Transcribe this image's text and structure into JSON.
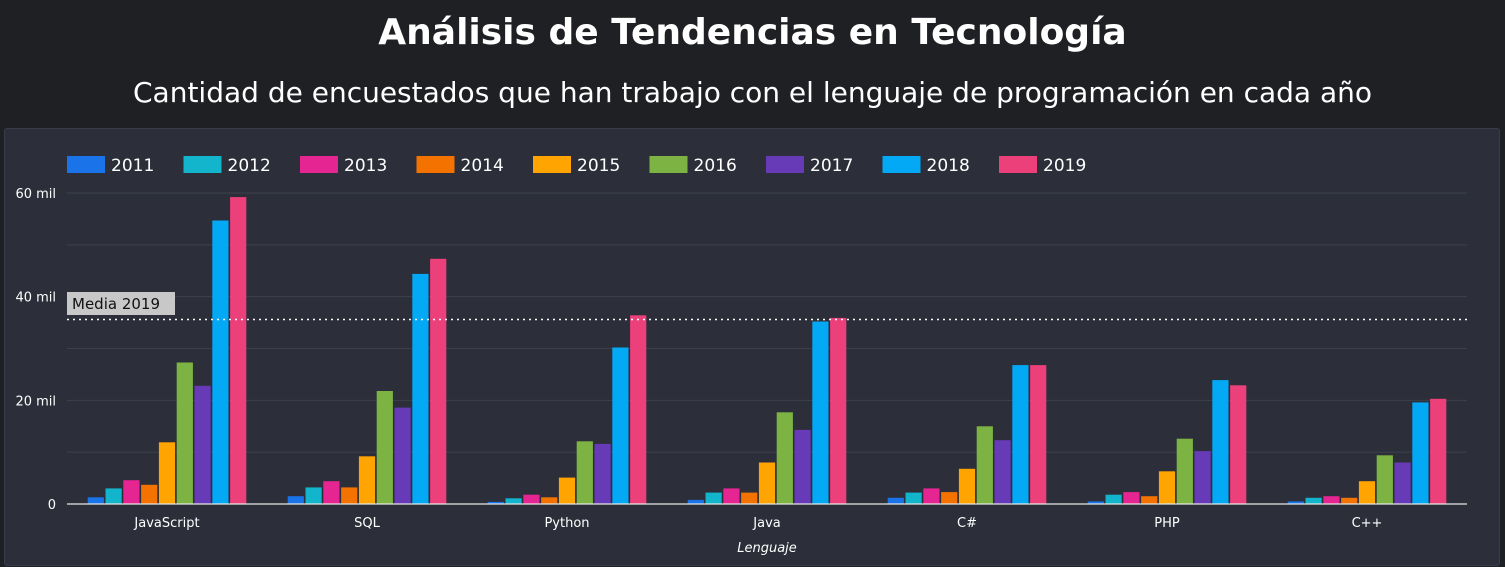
{
  "header": {
    "title": "Análisis de Tendencias en Tecnología",
    "subtitle": "Cantidad de encuestados que han trabajo con el lenguaje de programación en cada año"
  },
  "chart_data": {
    "type": "bar",
    "categories": [
      "JavaScript",
      "SQL",
      "Python",
      "Java",
      "C#",
      "PHP",
      "C++"
    ],
    "xlabel": "Lenguaje",
    "ylabel": "",
    "ylim": [
      0,
      60000
    ],
    "yticks": [
      {
        "value": 0,
        "label": "0"
      },
      {
        "value": 20000,
        "label": "20 mil"
      },
      {
        "value": 40000,
        "label": "40 mil"
      },
      {
        "value": 60000,
        "label": "60 mil"
      }
    ],
    "grid": true,
    "legend_position": "top-left",
    "series": [
      {
        "name": "2011",
        "color": "#1a73e8",
        "values": [
          1300,
          1500,
          400,
          800,
          1200,
          500,
          500
        ]
      },
      {
        "name": "2012",
        "color": "#12b5cb",
        "values": [
          3000,
          3200,
          1100,
          2200,
          2200,
          1800,
          1200
        ]
      },
      {
        "name": "2013",
        "color": "#e52592",
        "values": [
          4600,
          4400,
          1800,
          3000,
          3000,
          2300,
          1500
        ]
      },
      {
        "name": "2014",
        "color": "#f47200",
        "values": [
          3700,
          3200,
          1300,
          2200,
          2300,
          1500,
          1200
        ]
      },
      {
        "name": "2015",
        "color": "#ffa400",
        "values": [
          11900,
          9200,
          5100,
          8000,
          6800,
          6300,
          4400
        ]
      },
      {
        "name": "2016",
        "color": "#7cb342",
        "values": [
          27300,
          21800,
          12100,
          17700,
          15000,
          12600,
          9400
        ]
      },
      {
        "name": "2017",
        "color": "#673ab7",
        "values": [
          22800,
          18600,
          11600,
          14300,
          12300,
          10200,
          8000
        ]
      },
      {
        "name": "2018",
        "color": "#03a9f4",
        "values": [
          54700,
          44400,
          30200,
          35200,
          26800,
          23900,
          19600
        ]
      },
      {
        "name": "2019",
        "color": "#ec407a",
        "values": [
          59200,
          47300,
          36400,
          35900,
          26800,
          22900,
          20300
        ]
      }
    ],
    "reference_line": {
      "label": "Media 2019",
      "value": 35600
    }
  }
}
